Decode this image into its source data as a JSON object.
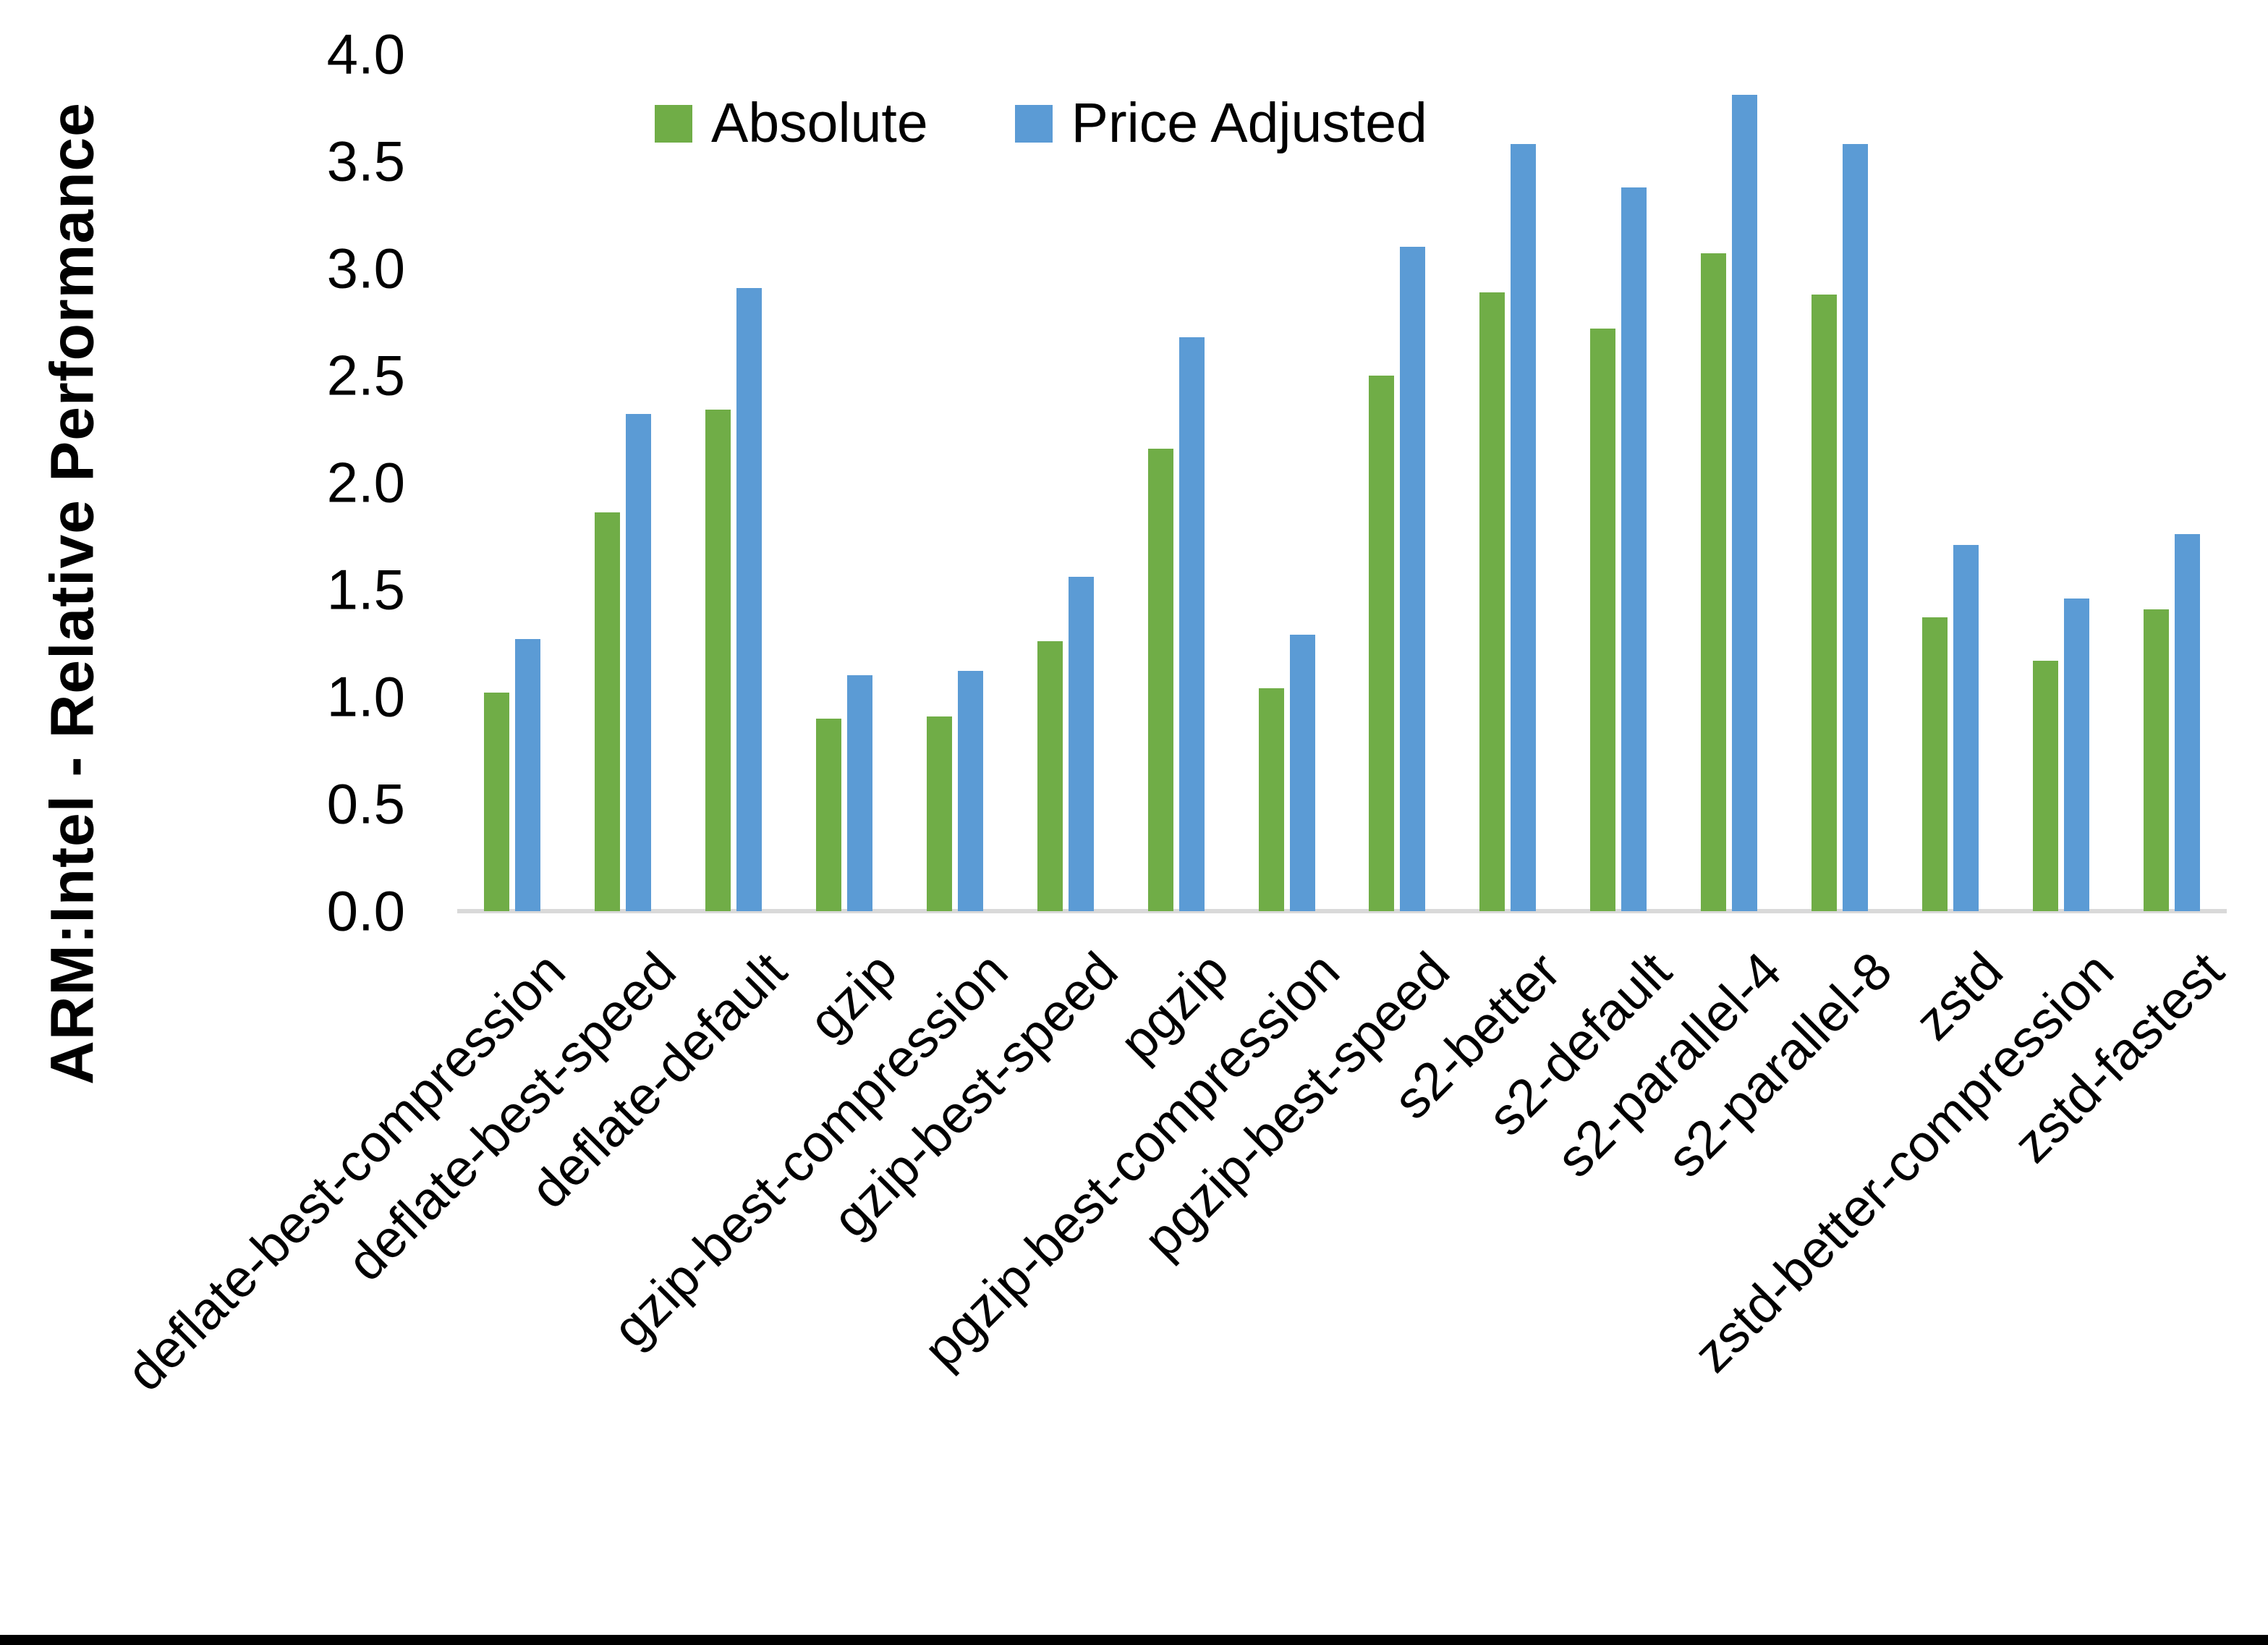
{
  "chart_data": {
    "type": "bar",
    "title": "",
    "ylabel": "ARM:Intel - Relative Performance",
    "xlabel": "",
    "ylim": [
      0.0,
      4.0
    ],
    "ytick_step": 0.5,
    "ytick_labels": [
      "0.0",
      "0.5",
      "1.0",
      "1.5",
      "2.0",
      "2.5",
      "3.0",
      "3.5",
      "4.0"
    ],
    "grid": false,
    "legend_position": "top-center",
    "categories": [
      "deflate-best-compression",
      "deflate-best-speed",
      "deflate-default",
      "gzip",
      "gzip-best-compression",
      "gzip-best-speed",
      "pgzip",
      "pgzip-best-compression",
      "pgzip-best-speed",
      "s2-better",
      "s2-default",
      "s2-parallel-4",
      "s2-parallel-8",
      "zstd",
      "zstd-better-compression",
      "zstd-fastest"
    ],
    "series": [
      {
        "name": "Absolute",
        "color": "#70AD47",
        "values": [
          1.02,
          1.86,
          2.34,
          0.9,
          0.91,
          1.26,
          2.16,
          1.04,
          2.5,
          2.89,
          2.72,
          3.07,
          2.88,
          1.37,
          1.17,
          1.41
        ]
      },
      {
        "name": "Price Adjusted",
        "color": "#5B9BD5",
        "values": [
          1.27,
          2.32,
          2.91,
          1.1,
          1.12,
          1.56,
          2.68,
          1.29,
          3.1,
          3.58,
          3.38,
          3.81,
          3.58,
          1.71,
          1.46,
          1.76
        ]
      }
    ]
  }
}
